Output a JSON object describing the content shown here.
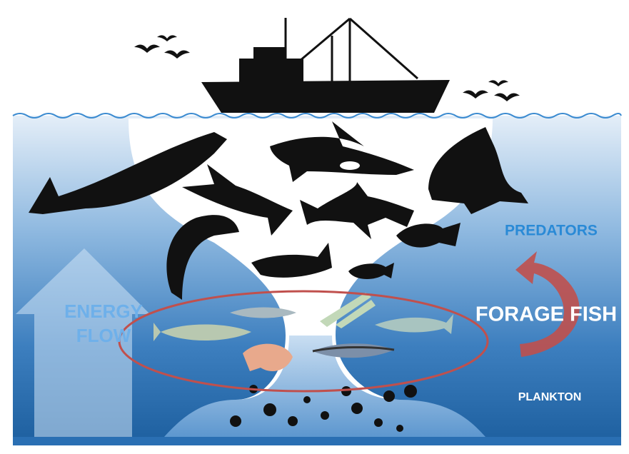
{
  "labels": {
    "predators": "PREDATORS",
    "energy_flow": [
      "ENERGY",
      "FLOW"
    ],
    "forage_fish": "FORAGE FISH",
    "plankton": "PLANKTON"
  }
}
